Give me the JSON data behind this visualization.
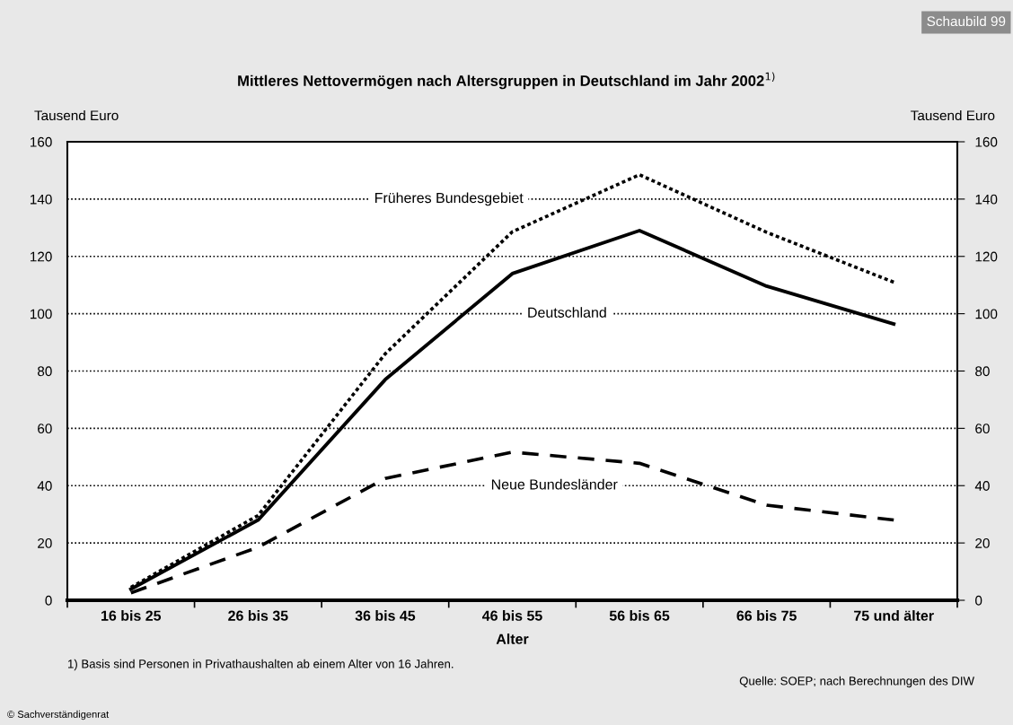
{
  "chart_data": {
    "type": "line",
    "title": "Mittleres Nettovermögen nach Altersgruppen in Deutschland im Jahr 2002$^{1)}$",
    "xlabel": "Alter",
    "ylabel": "Tausend Euro",
    "y2label": "Tausend Euro",
    "categories": [
      "16 bis 25",
      "26 bis 35",
      "36 bis 45",
      "46 bis 55",
      "56 bis 65",
      "66 bis 75",
      "75 und älter"
    ],
    "series": [
      {
        "name": "Früheres Bundesgebiet",
        "color": "#000000",
        "line_style": "dotted",
        "values": [
          4.5,
          29.6,
          86,
          128.6,
          148.5,
          128.4,
          111
        ]
      },
      {
        "name": "Deutschland",
        "color": "#000000",
        "line_style": "solid",
        "values": [
          3.9,
          28,
          77,
          114,
          129,
          109.6,
          96.4
        ]
      },
      {
        "name": "Neue Bundesländer",
        "color": "#000000",
        "line_style": "dashed",
        "values": [
          2.6,
          18.5,
          42.5,
          51.7,
          47.8,
          33.2,
          28
        ]
      }
    ],
    "ylim": [
      0,
      160
    ],
    "yticks": [
      0,
      20,
      40,
      60,
      80,
      100,
      120,
      140,
      160
    ],
    "y2lim": [
      0,
      160
    ],
    "y2ticks": [
      0,
      20,
      40,
      60,
      80,
      100,
      120,
      140,
      160
    ],
    "grid": "y",
    "legend": false,
    "marker": "none",
    "annotations": [
      "Schaubild 99",
      "1) Basis sind Personen in Privathaushalten ab einem Alter von 16 Jahren.",
      "Quelle: SOEP; nach Berechnungen des DIW",
      "© Sachverständigenrat"
    ]
  }
}
